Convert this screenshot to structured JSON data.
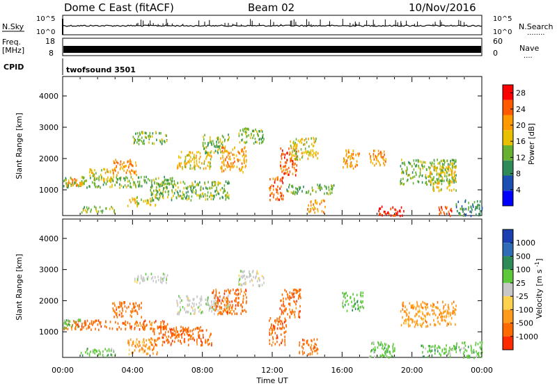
{
  "header": {
    "radar_title": "Dome C East (fitACF)",
    "beam": "Beam 02",
    "date": "10/Nov/2016"
  },
  "strip_panels": {
    "nsky": {
      "left_label": "N.Sky",
      "left_ticks": [
        "10^5",
        "10^0"
      ],
      "right_label": "N.Search",
      "right_ticks": [
        "10^5",
        "10^0"
      ],
      "right_marker": "........"
    },
    "freq": {
      "left_label_line1": "Freq.",
      "left_label_line2": "[MHz]",
      "left_ticks": [
        "18",
        "8"
      ],
      "right_label": "Nave",
      "right_ticks": [
        "60",
        "0"
      ],
      "right_marker": "...."
    },
    "cpid": {
      "left_label": "CPID",
      "program": "twofsound 3501"
    }
  },
  "chart_data": [
    {
      "type": "heatmap",
      "panel": "power",
      "ylabel": "Slant Range [km]",
      "xlabel": "",
      "xlim": [
        0,
        24
      ],
      "ylim": [
        200,
        4600
      ],
      "x_ticks": [
        "00:00",
        "04:00",
        "08:00",
        "12:00",
        "16:00",
        "20:00",
        "00:00"
      ],
      "y_ticks": [
        "1000",
        "2000",
        "3000",
        "4000"
      ],
      "colorbar": {
        "label": "Power [dB]",
        "ticks": [
          "4",
          "8",
          "12",
          "16",
          "20",
          "24",
          "28"
        ],
        "range": [
          0,
          30
        ],
        "colors": [
          "#0000ff",
          "#1b4fb3",
          "#2e8b57",
          "#66b032",
          "#e8c000",
          "#ff9900",
          "#ff5a00",
          "#ff0000"
        ]
      },
      "regions": [
        {
          "t0": 0.0,
          "t1": 6.5,
          "r0": 1100,
          "r1": 1450,
          "v": 12
        },
        {
          "t0": 0.2,
          "t1": 1.2,
          "r0": 1150,
          "r1": 1400,
          "v": 22
        },
        {
          "t0": 1.0,
          "t1": 3.0,
          "r0": 300,
          "r1": 500,
          "v": 14
        },
        {
          "t0": 1.5,
          "t1": 2.8,
          "r0": 1300,
          "r1": 1700,
          "v": 16
        },
        {
          "t0": 2.8,
          "t1": 4.2,
          "r0": 1500,
          "r1": 2000,
          "v": 22
        },
        {
          "t0": 3.7,
          "t1": 5.3,
          "r0": 500,
          "r1": 800,
          "v": 18
        },
        {
          "t0": 4.0,
          "t1": 6.0,
          "r0": 2500,
          "r1": 2900,
          "v": 12
        },
        {
          "t0": 5.0,
          "t1": 9.5,
          "r0": 700,
          "r1": 1300,
          "v": 14
        },
        {
          "t0": 6.5,
          "t1": 8.5,
          "r0": 1700,
          "r1": 2300,
          "v": 16
        },
        {
          "t0": 8.0,
          "t1": 9.5,
          "r0": 2200,
          "r1": 2800,
          "v": 12
        },
        {
          "t0": 9.0,
          "t1": 10.5,
          "r0": 1600,
          "r1": 2400,
          "v": 20
        },
        {
          "t0": 10.0,
          "t1": 11.5,
          "r0": 2500,
          "r1": 3000,
          "v": 12
        },
        {
          "t0": 11.8,
          "t1": 12.6,
          "r0": 700,
          "r1": 1500,
          "v": 26
        },
        {
          "t0": 12.4,
          "t1": 13.4,
          "r0": 1500,
          "r1": 2400,
          "v": 24
        },
        {
          "t0": 13.0,
          "t1": 14.6,
          "r0": 2000,
          "r1": 2700,
          "v": 16
        },
        {
          "t0": 12.8,
          "t1": 15.5,
          "r0": 900,
          "r1": 1200,
          "v": 12
        },
        {
          "t0": 14.0,
          "t1": 15.0,
          "r0": 300,
          "r1": 700,
          "v": 20
        },
        {
          "t0": 16.0,
          "t1": 17.0,
          "r0": 1700,
          "r1": 2300,
          "v": 20
        },
        {
          "t0": 17.5,
          "t1": 18.5,
          "r0": 1800,
          "r1": 2300,
          "v": 20
        },
        {
          "t0": 18.0,
          "t1": 19.5,
          "r0": 200,
          "r1": 500,
          "v": 28
        },
        {
          "t0": 19.3,
          "t1": 22.5,
          "r0": 1200,
          "r1": 2000,
          "v": 14
        },
        {
          "t0": 21.0,
          "t1": 22.5,
          "r0": 1000,
          "r1": 1800,
          "v": 16
        },
        {
          "t0": 21.5,
          "t1": 22.3,
          "r0": 200,
          "r1": 500,
          "v": 26
        },
        {
          "t0": 22.5,
          "t1": 24.0,
          "r0": 200,
          "r1": 700,
          "v": 8
        }
      ]
    },
    {
      "type": "heatmap",
      "panel": "velocity",
      "ylabel": "Slant Range [km]",
      "xlabel": "Time UT",
      "xlim": [
        0,
        24
      ],
      "ylim": [
        200,
        4600
      ],
      "x_ticks": [
        "00:00",
        "04:00",
        "08:00",
        "12:00",
        "16:00",
        "20:00",
        "00:00"
      ],
      "y_ticks": [
        "1000",
        "2000",
        "3000",
        "4000"
      ],
      "colorbar": {
        "label": "Velocity [m s^-1]",
        "ticks": [
          "1000",
          "500",
          "100",
          "25",
          "-25",
          "-100",
          "-500",
          "-1000"
        ],
        "colors": [
          "#1b3fb0",
          "#2e6db5",
          "#2e8b57",
          "#5cc83a",
          "#c8c8c8",
          "#ffd24d",
          "#ff9a1a",
          "#ff6a00",
          "#ff2a00"
        ]
      },
      "regions": [
        {
          "t0": 0.0,
          "t1": 6.0,
          "r0": 1100,
          "r1": 1400,
          "v": -500
        },
        {
          "t0": 0.0,
          "t1": 1.0,
          "r0": 1150,
          "r1": 1450,
          "v": 100
        },
        {
          "t0": 1.0,
          "t1": 3.0,
          "r0": 250,
          "r1": 500,
          "v": 100
        },
        {
          "t0": 2.8,
          "t1": 4.5,
          "r0": 1500,
          "r1": 2000,
          "v": -500
        },
        {
          "t0": 3.7,
          "t1": 5.5,
          "r0": 300,
          "r1": 800,
          "v": -100
        },
        {
          "t0": 4.0,
          "t1": 6.0,
          "r0": 2600,
          "r1": 2900,
          "v": 25
        },
        {
          "t0": 5.0,
          "t1": 8.5,
          "r0": 600,
          "r1": 1200,
          "v": -500
        },
        {
          "t0": 6.5,
          "t1": 9.5,
          "r0": 1600,
          "r1": 2200,
          "v": 25
        },
        {
          "t0": 8.5,
          "t1": 10.5,
          "r0": 1600,
          "r1": 2400,
          "v": -500
        },
        {
          "t0": 10.0,
          "t1": 11.5,
          "r0": 2500,
          "r1": 3000,
          "v": 25
        },
        {
          "t0": 11.8,
          "t1": 12.8,
          "r0": 600,
          "r1": 1500,
          "v": -500
        },
        {
          "t0": 12.4,
          "t1": 13.6,
          "r0": 1500,
          "r1": 2400,
          "v": -500
        },
        {
          "t0": 13.5,
          "t1": 14.6,
          "r0": 300,
          "r1": 800,
          "v": -500
        },
        {
          "t0": 16.0,
          "t1": 17.2,
          "r0": 1700,
          "r1": 2300,
          "v": 100
        },
        {
          "t0": 17.5,
          "t1": 19.0,
          "r0": 200,
          "r1": 700,
          "v": 100
        },
        {
          "t0": 19.3,
          "t1": 22.5,
          "r0": 1200,
          "r1": 2000,
          "v": -100
        },
        {
          "t0": 20.5,
          "t1": 22.5,
          "r0": 200,
          "r1": 600,
          "v": 100
        },
        {
          "t0": 22.5,
          "t1": 24.0,
          "r0": 200,
          "r1": 700,
          "v": 100
        }
      ]
    }
  ]
}
